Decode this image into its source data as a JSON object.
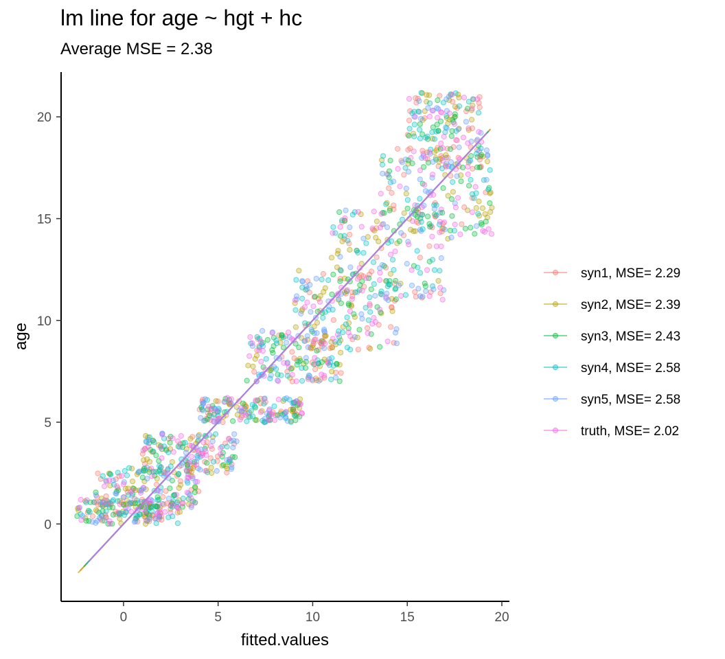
{
  "chart_data": {
    "type": "scatter",
    "title": "lm line for age ~ hgt + hc",
    "subtitle": "Average MSE = 2.38",
    "xlabel": "fitted.values",
    "ylabel": "age",
    "xlim": [
      -3.3,
      20.4
    ],
    "ylim": [
      -3.8,
      22.2
    ],
    "x_ticks": [
      0,
      5,
      10,
      15,
      20
    ],
    "y_ticks": [
      0,
      5,
      10,
      15,
      20
    ],
    "grid": false,
    "legend_position": "right",
    "point_alpha": 0.3,
    "series": [
      {
        "name": "syn1, MSE= 2.29",
        "label": "syn1, MSE= 2.29",
        "color": "#F8766D",
        "fit_line": [
          [
            -2.3,
            -2.3
          ],
          [
            19.4,
            19.4
          ]
        ]
      },
      {
        "name": "syn2, MSE= 2.39",
        "label": "syn2, MSE= 2.39",
        "color": "#B79F00",
        "fit_line": [
          [
            -2.4,
            -2.4
          ],
          [
            19.4,
            19.4
          ]
        ]
      },
      {
        "name": "syn3, MSE= 2.43",
        "label": "syn3, MSE= 2.43",
        "color": "#00BA38",
        "fit_line": [
          [
            -2.1,
            -2.1
          ],
          [
            19.3,
            19.3
          ]
        ]
      },
      {
        "name": "syn4, MSE= 2.58",
        "label": "syn4, MSE= 2.58",
        "color": "#00BFC4",
        "fit_line": [
          [
            -2.0,
            -2.0
          ],
          [
            19.3,
            19.3
          ]
        ]
      },
      {
        "name": "syn5, MSE= 2.58",
        "label": "syn5, MSE= 2.58",
        "color": "#619CFF",
        "fit_line": [
          [
            -1.9,
            -1.9
          ],
          [
            19.2,
            19.2
          ]
        ]
      },
      {
        "name": "truth, MSE= 2.02",
        "label": "truth, MSE= 2.02",
        "color": "#F564E3",
        "fit_line": [
          [
            -1.8,
            -1.8
          ],
          [
            19.2,
            19.2
          ]
        ]
      }
    ],
    "point_clusters": [
      {
        "x": [
          -2.5,
          3.0
        ],
        "y": [
          0.0,
          1.2
        ]
      },
      {
        "x": [
          -1.5,
          4.0
        ],
        "y": [
          0.8,
          2.8
        ]
      },
      {
        "x": [
          1.0,
          6.0
        ],
        "y": [
          2.5,
          4.5
        ]
      },
      {
        "x": [
          4.0,
          9.5
        ],
        "y": [
          5.0,
          6.2
        ]
      },
      {
        "x": [
          6.5,
          11.5
        ],
        "y": [
          7.0,
          9.5
        ]
      },
      {
        "x": [
          9.0,
          14.5
        ],
        "y": [
          8.5,
          12.5
        ]
      },
      {
        "x": [
          11.0,
          17.0
        ],
        "y": [
          11.0,
          15.5
        ]
      },
      {
        "x": [
          13.5,
          19.5
        ],
        "y": [
          14.0,
          18.5
        ]
      },
      {
        "x": [
          15.0,
          19.0
        ],
        "y": [
          17.5,
          21.2
        ]
      }
    ]
  }
}
